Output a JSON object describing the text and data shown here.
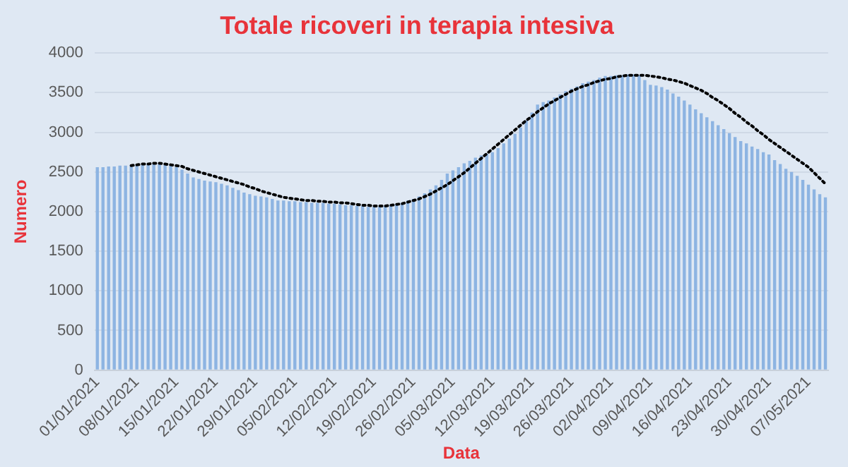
{
  "chart_data": {
    "type": "bar",
    "title": "Totale ricoveri in terapia intesiva",
    "xlabel": "Data",
    "ylabel": "Numero",
    "categories": [
      "01/01/2021",
      null,
      null,
      null,
      null,
      null,
      null,
      "08/01/2021",
      null,
      null,
      null,
      null,
      null,
      null,
      "15/01/2021",
      null,
      null,
      null,
      null,
      null,
      null,
      "22/01/2021",
      null,
      null,
      null,
      null,
      null,
      null,
      "29/01/2021",
      null,
      null,
      null,
      null,
      null,
      null,
      "05/02/2021",
      null,
      null,
      null,
      null,
      null,
      null,
      "12/02/2021",
      null,
      null,
      null,
      null,
      null,
      null,
      "19/02/2021",
      null,
      null,
      null,
      null,
      null,
      null,
      "26/02/2021",
      null,
      null,
      null,
      null,
      null,
      null,
      "05/03/2021",
      null,
      null,
      null,
      null,
      null,
      null,
      "12/03/2021",
      null,
      null,
      null,
      null,
      null,
      null,
      "19/03/2021",
      null,
      null,
      null,
      null,
      null,
      null,
      "26/03/2021",
      null,
      null,
      null,
      null,
      null,
      null,
      "02/04/2021",
      null,
      null,
      null,
      null,
      null,
      null,
      "09/04/2021",
      null,
      null,
      null,
      null,
      null,
      null,
      "16/04/2021",
      null,
      null,
      null,
      null,
      null,
      null,
      "23/04/2021",
      null,
      null,
      null,
      null,
      null,
      null,
      "30/04/2021",
      null,
      null,
      null,
      null,
      null,
      null,
      "07/05/2021",
      null,
      null,
      null
    ],
    "series": [
      {
        "color": "#8db4e2",
        "values": [
          2560,
          2560,
          2570,
          2570,
          2580,
          2580,
          2590,
          2590,
          2590,
          2600,
          2600,
          2600,
          2590,
          2580,
          2560,
          2530,
          2480,
          2430,
          2410,
          2390,
          2380,
          2370,
          2350,
          2330,
          2300,
          2270,
          2240,
          2220,
          2200,
          2190,
          2180,
          2160,
          2140,
          2140,
          2130,
          2130,
          2120,
          2120,
          2110,
          2110,
          2110,
          2100,
          2100,
          2090,
          2080,
          2080,
          2070,
          2070,
          2060,
          2060,
          2060,
          2070,
          2080,
          2090,
          2110,
          2140,
          2160,
          2190,
          2230,
          2280,
          2330,
          2400,
          2480,
          2520,
          2560,
          2610,
          2640,
          2680,
          2710,
          2730,
          2750,
          2800,
          2860,
          2920,
          2980,
          3060,
          3150,
          3250,
          3350,
          3380,
          3400,
          3440,
          3480,
          3520,
          3550,
          3580,
          3620,
          3640,
          3660,
          3690,
          3710,
          3710,
          3720,
          3720,
          3730,
          3730,
          3720,
          3660,
          3600,
          3590,
          3570,
          3540,
          3490,
          3450,
          3400,
          3350,
          3290,
          3240,
          3190,
          3140,
          3090,
          3040,
          2990,
          2940,
          2890,
          2860,
          2820,
          2790,
          2750,
          2720,
          2650,
          2600,
          2540,
          2500,
          2450,
          2400,
          2340,
          2280,
          2220,
          2180
        ]
      },
      {
        "type": "line",
        "color": "#000000",
        "line_style": "dotted",
        "marker": "none",
        "values": [
          null,
          null,
          null,
          null,
          null,
          null,
          2580,
          2590,
          2600,
          2600,
          2610,
          2610,
          2600,
          2590,
          2580,
          2570,
          2540,
          2520,
          2500,
          2480,
          2460,
          2440,
          2420,
          2400,
          2380,
          2360,
          2340,
          2310,
          2290,
          2260,
          2240,
          2220,
          2200,
          2180,
          2170,
          2160,
          2150,
          2140,
          2140,
          2130,
          2130,
          2120,
          2120,
          2110,
          2110,
          2100,
          2090,
          2080,
          2080,
          2070,
          2070,
          2070,
          2080,
          2090,
          2100,
          2120,
          2140,
          2160,
          2190,
          2220,
          2260,
          2300,
          2340,
          2390,
          2440,
          2490,
          2550,
          2610,
          2670,
          2730,
          2790,
          2850,
          2910,
          2970,
          3030,
          3090,
          3150,
          3200,
          3260,
          3310,
          3360,
          3400,
          3440,
          3480,
          3520,
          3550,
          3580,
          3600,
          3630,
          3650,
          3670,
          3680,
          3700,
          3710,
          3720,
          3720,
          3720,
          3720,
          3710,
          3700,
          3690,
          3670,
          3660,
          3640,
          3620,
          3590,
          3560,
          3530,
          3490,
          3440,
          3400,
          3350,
          3300,
          3240,
          3190,
          3130,
          3080,
          3020,
          2970,
          2910,
          2860,
          2810,
          2760,
          2710,
          2660,
          2610,
          2560,
          2490,
          2420,
          2350
        ]
      }
    ],
    "ylim": [
      0,
      4000
    ],
    "yticks": [
      0,
      500,
      1000,
      1500,
      2000,
      2500,
      3000,
      3500,
      4000
    ],
    "grid": "y",
    "legend": false
  }
}
